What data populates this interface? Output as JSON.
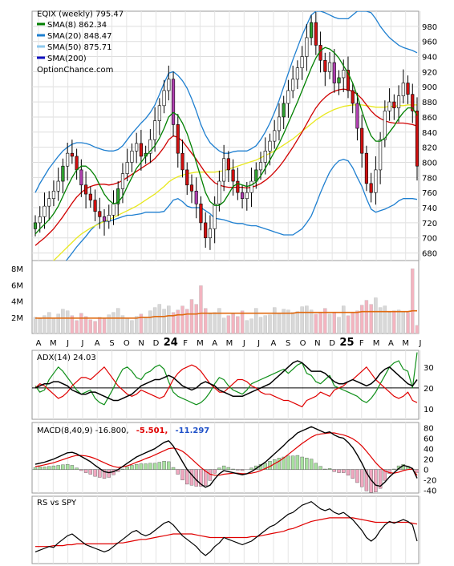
{
  "chart_data": [
    {
      "type": "line",
      "panel": "price",
      "title": "EQIX (weekly) 795.47",
      "source": "OptionChance.com",
      "legend": [
        {
          "label": "SMA(8) 862.34",
          "color": "#008000"
        },
        {
          "label": "SMA(20) 848.47",
          "color": "#1e7fd0"
        },
        {
          "label": "SMA(50) 875.71",
          "color": "#8ec9ee"
        },
        {
          "label": "SMA(200)",
          "color": "#1010c0"
        }
      ],
      "legend_placement": "top-left",
      "ylim": [
        670,
        1000
      ],
      "y_ticks": [
        680,
        700,
        720,
        740,
        760,
        780,
        800,
        820,
        840,
        860,
        880,
        900,
        920,
        940,
        960,
        980
      ],
      "x_ticks": [
        "A",
        "M",
        "J",
        "J",
        "A",
        "S",
        "O",
        "N",
        "D",
        "24",
        "F",
        "M",
        "A",
        "M",
        "J",
        "J",
        "A",
        "S",
        "O",
        "N",
        "D",
        "25",
        "F",
        "M",
        "A",
        "M",
        "J"
      ],
      "close": [
        720,
        728,
        742,
        752,
        762,
        775,
        795,
        812,
        808,
        790,
        770,
        758,
        750,
        735,
        728,
        722,
        730,
        745,
        765,
        785,
        800,
        815,
        825,
        808,
        812,
        830,
        855,
        875,
        895,
        910,
        850,
        812,
        790,
        770,
        762,
        745,
        720,
        700,
        712,
        745,
        775,
        805,
        790,
        775,
        760,
        752,
        760,
        775,
        790,
        800,
        815,
        828,
        842,
        860,
        878,
        895,
        910,
        925,
        940,
        965,
        985,
        955,
        935,
        920,
        932,
        905,
        912,
        922,
        895,
        878,
        845,
        812,
        772,
        760,
        790,
        830,
        868,
        880,
        872,
        888,
        905,
        890,
        868,
        795
      ],
      "sma8": [
        705,
        712,
        718,
        724,
        732,
        742,
        755,
        768,
        780,
        790,
        795,
        795,
        790,
        782,
        770,
        758,
        750,
        745,
        747,
        755,
        768,
        780,
        792,
        800,
        808,
        815,
        822,
        832,
        845,
        860,
        866,
        862,
        852,
        838,
        820,
        800,
        780,
        760,
        748,
        743,
        743,
        748,
        758,
        768,
        772,
        770,
        768,
        770,
        774,
        782,
        792,
        803,
        814,
        825,
        838,
        852,
        866,
        880,
        895,
        910,
        925,
        938,
        948,
        952,
        950,
        945,
        938,
        928,
        918,
        905,
        888,
        868,
        850,
        835,
        828,
        828,
        832,
        840,
        848,
        858,
        866,
        872,
        872,
        862
      ],
      "sma20": [
        690,
        695,
        700,
        706,
        712,
        720,
        728,
        737,
        746,
        754,
        760,
        765,
        768,
        770,
        771,
        771,
        770,
        771,
        773,
        776,
        780,
        784,
        788,
        792,
        796,
        800,
        805,
        812,
        820,
        830,
        835,
        833,
        828,
        820,
        812,
        804,
        795,
        786,
        779,
        773,
        770,
        768,
        767,
        767,
        767,
        767,
        766,
        767,
        769,
        772,
        776,
        781,
        787,
        794,
        802,
        811,
        820,
        830,
        840,
        851,
        862,
        872,
        880,
        886,
        891,
        894,
        896,
        897,
        896,
        894,
        890,
        884,
        876,
        868,
        862,
        858,
        855,
        853,
        852,
        852,
        852,
        851,
        850,
        848
      ],
      "sma50": [
        650,
        655,
        660,
        665,
        670,
        676,
        682,
        688,
        694,
        700,
        705,
        709,
        713,
        716,
        719,
        722,
        724,
        727,
        730,
        733,
        736,
        739,
        742,
        746,
        750,
        754,
        758,
        763,
        768,
        774,
        778,
        781,
        783,
        785,
        786,
        787,
        787,
        787,
        787,
        787,
        788,
        789,
        791,
        793,
        795,
        797,
        799,
        801,
        803,
        806,
        809,
        812,
        815,
        819,
        823,
        827,
        831,
        836,
        841,
        846,
        851,
        856,
        860,
        864,
        867,
        870,
        872,
        874,
        875,
        876,
        876,
        876,
        875,
        874,
        873,
        873,
        873,
        874,
        874,
        875,
        875,
        876,
        876,
        876
      ],
      "bb_upper": [
        760,
        772,
        782,
        792,
        800,
        808,
        815,
        820,
        824,
        826,
        826,
        825,
        823,
        820,
        818,
        816,
        815,
        815,
        817,
        822,
        830,
        838,
        845,
        852,
        858,
        866,
        876,
        890,
        905,
        918,
        920,
        915,
        908,
        898,
        884,
        868,
        850,
        836,
        826,
        820,
        815,
        812,
        812,
        814,
        815,
        815,
        815,
        818,
        822,
        830,
        840,
        852,
        866,
        882,
        900,
        918,
        936,
        952,
        968,
        982,
        995,
        1000,
        1000,
        998,
        995,
        992,
        990,
        990,
        990,
        995,
        1000,
        1000,
        1000,
        998,
        990,
        980,
        972,
        965,
        960,
        955,
        952,
        950,
        948,
        945
      ],
      "bb_lower": [
        620,
        625,
        632,
        640,
        648,
        656,
        664,
        672,
        680,
        688,
        695,
        702,
        710,
        716,
        720,
        722,
        722,
        724,
        726,
        728,
        730,
        730,
        731,
        732,
        734,
        734,
        734,
        734,
        735,
        742,
        750,
        752,
        748,
        742,
        740,
        740,
        740,
        736,
        732,
        726,
        725,
        724,
        722,
        720,
        719,
        719,
        717,
        716,
        716,
        714,
        712,
        710,
        708,
        706,
        704,
        704,
        704,
        708,
        712,
        720,
        729,
        744,
        760,
        774,
        787,
        796,
        802,
        804,
        802,
        793,
        780,
        768,
        752,
        738,
        734,
        736,
        738,
        741,
        744,
        749,
        752,
        752,
        752,
        751
      ]
    },
    {
      "type": "bar",
      "panel": "volume",
      "y_ticks": [
        "2M",
        "4M",
        "6M",
        "8M"
      ],
      "ylim": [
        0,
        9
      ],
      "values": [
        2.0,
        1.8,
        2.2,
        2.6,
        1.9,
        2.4,
        3.0,
        2.8,
        2.2,
        1.6,
        2.5,
        2.1,
        1.7,
        1.5,
        2.0,
        1.8,
        2.3,
        2.6,
        3.1,
        2.2,
        1.9,
        1.6,
        2.1,
        2.4,
        2.0,
        2.8,
        3.2,
        3.6,
        3.0,
        3.4,
        2.6,
        2.9,
        3.4,
        3.0,
        4.2,
        3.6,
        5.9,
        3.1,
        2.4,
        2.6,
        3.1,
        1.9,
        2.2,
        2.4,
        2.1,
        2.8,
        1.6,
        1.8,
        3.1,
        2.0,
        2.2,
        2.3,
        3.2,
        2.5,
        3.0,
        2.9,
        2.6,
        2.7,
        3.3,
        3.4,
        2.9,
        2.4,
        2.6,
        3.1,
        2.4,
        2.6,
        2.0,
        3.4,
        2.2,
        2.6,
        2.8,
        3.5,
        4.1,
        3.6,
        4.4,
        3.2,
        3.4,
        2.6,
        2.8,
        2.9,
        2.7,
        2.6,
        8.0,
        1.0
      ],
      "avg": [
        1.9,
        1.9,
        1.9,
        1.9,
        1.9,
        1.9,
        1.9,
        1.9,
        1.9,
        1.9,
        1.9,
        1.9,
        1.9,
        1.9,
        1.9,
        1.9,
        1.9,
        1.9,
        1.9,
        1.9,
        1.9,
        1.9,
        1.9,
        2.0,
        2.0,
        2.0,
        2.1,
        2.1,
        2.1,
        2.2,
        2.2,
        2.3,
        2.3,
        2.4,
        2.4,
        2.4,
        2.5,
        2.5,
        2.5,
        2.5,
        2.5,
        2.5,
        2.5,
        2.5,
        2.5,
        2.5,
        2.5,
        2.5,
        2.5,
        2.5,
        2.5,
        2.5,
        2.5,
        2.5,
        2.5,
        2.5,
        2.5,
        2.6,
        2.6,
        2.6,
        2.6,
        2.6,
        2.6,
        2.6,
        2.6,
        2.6,
        2.6,
        2.6,
        2.6,
        2.6,
        2.6,
        2.7,
        2.7,
        2.7,
        2.7,
        2.7,
        2.7,
        2.7,
        2.7,
        2.7,
        2.7,
        2.7,
        2.8,
        2.8
      ]
    },
    {
      "type": "line",
      "panel": "adx",
      "title": "ADX(14) 24.03",
      "ylim": [
        5,
        38
      ],
      "y_ticks": [
        10,
        20,
        30
      ],
      "reference_line": 20,
      "adx": [
        20,
        21,
        22,
        22,
        23,
        23,
        22,
        21,
        19,
        18,
        17,
        17,
        18,
        18,
        17,
        16,
        15,
        14,
        14,
        15,
        16,
        17,
        19,
        21,
        22,
        23,
        24,
        24,
        25,
        26,
        25,
        23,
        21,
        20,
        19,
        20,
        22,
        23,
        22,
        21,
        19,
        18,
        17,
        16,
        16,
        16,
        17,
        18,
        19,
        20,
        21,
        22,
        24,
        26,
        28,
        30,
        32,
        33,
        32,
        30,
        28,
        28,
        28,
        27,
        25,
        23,
        22,
        22,
        23,
        24,
        23,
        22,
        21,
        22,
        24,
        27,
        29,
        30,
        28,
        26,
        24,
        22,
        21,
        24
      ],
      "plus_di": [
        21,
        18,
        19,
        24,
        27,
        30,
        28,
        25,
        22,
        19,
        17,
        18,
        19,
        15,
        13,
        12,
        16,
        20,
        25,
        29,
        30,
        28,
        25,
        24,
        27,
        28,
        30,
        31,
        29,
        23,
        18,
        16,
        15,
        14,
        13,
        12,
        13,
        15,
        18,
        22,
        25,
        24,
        21,
        19,
        18,
        17,
        19,
        22,
        23,
        24,
        25,
        26,
        27,
        28,
        29,
        27,
        29,
        31,
        32,
        27,
        26,
        23,
        22,
        24,
        26,
        21,
        20,
        19,
        18,
        17,
        16,
        14,
        13,
        15,
        18,
        22,
        26,
        30,
        32,
        33,
        29,
        28,
        20,
        37
      ],
      "minus_di": [
        20,
        22,
        21,
        19,
        17,
        15,
        16,
        18,
        21,
        23,
        25,
        25,
        24,
        26,
        28,
        30,
        27,
        24,
        21,
        19,
        17,
        16,
        17,
        19,
        18,
        17,
        16,
        15,
        16,
        20,
        24,
        27,
        29,
        30,
        31,
        30,
        28,
        25,
        22,
        20,
        18,
        18,
        20,
        22,
        24,
        24,
        23,
        21,
        20,
        18,
        17,
        17,
        16,
        15,
        14,
        14,
        13,
        12,
        11,
        14,
        15,
        16,
        18,
        17,
        16,
        19,
        20,
        21,
        23,
        24,
        26,
        28,
        30,
        27,
        24,
        22,
        20,
        18,
        16,
        15,
        16,
        18,
        14,
        13
      ]
    },
    {
      "type": "line",
      "panel": "macd",
      "title": "MACD(8,40,9) -16.800,",
      "value_labels": [
        {
          "text": "-5.501,",
          "color": "#e00000"
        },
        {
          "text": "-11.297",
          "color": "#1e50c8"
        }
      ],
      "ylim": [
        -45,
        90
      ],
      "y_ticks": [
        -40,
        -20,
        0,
        20,
        40,
        60,
        80
      ],
      "macd": [
        10,
        12,
        14,
        17,
        20,
        24,
        28,
        32,
        33,
        30,
        25,
        20,
        15,
        8,
        2,
        -4,
        -6,
        -4,
        0,
        6,
        12,
        18,
        24,
        28,
        32,
        36,
        40,
        46,
        52,
        55,
        45,
        30,
        15,
        0,
        -10,
        -20,
        -28,
        -34,
        -30,
        -18,
        -8,
        -2,
        -4,
        -6,
        -8,
        -10,
        -8,
        -4,
        2,
        8,
        14,
        22,
        30,
        38,
        46,
        55,
        62,
        70,
        74,
        78,
        82,
        78,
        74,
        70,
        72,
        66,
        62,
        60,
        52,
        42,
        28,
        12,
        -6,
        -20,
        -30,
        -32,
        -24,
        -14,
        -6,
        2,
        8,
        6,
        2,
        -16.8
      ],
      "signal": [
        6,
        7,
        9,
        11,
        13,
        16,
        19,
        22,
        25,
        27,
        27,
        26,
        24,
        21,
        17,
        13,
        9,
        6,
        4,
        5,
        7,
        10,
        14,
        17,
        21,
        24,
        28,
        32,
        36,
        40,
        41,
        39,
        35,
        28,
        20,
        12,
        4,
        -3,
        -9,
        -11,
        -11,
        -9,
        -8,
        -7,
        -7,
        -8,
        -8,
        -7,
        -5,
        -2,
        2,
        6,
        11,
        16,
        22,
        29,
        36,
        43,
        50,
        56,
        62,
        66,
        68,
        69,
        70,
        70,
        68,
        66,
        63,
        59,
        53,
        45,
        35,
        24,
        13,
        4,
        -3,
        -6,
        -7,
        -5,
        -2,
        0,
        1,
        -11.3
      ],
      "histogram": [
        4,
        5,
        5,
        6,
        7,
        8,
        9,
        10,
        8,
        3,
        -2,
        -6,
        -9,
        -13,
        -15,
        -17,
        -15,
        -10,
        -4,
        1,
        5,
        8,
        10,
        11,
        11,
        12,
        12,
        14,
        16,
        15,
        4,
        -9,
        -20,
        -28,
        -30,
        -32,
        -32,
        -31,
        -21,
        -7,
        3,
        7,
        4,
        1,
        -1,
        -2,
        0,
        3,
        7,
        10,
        12,
        16,
        19,
        22,
        24,
        26,
        26,
        27,
        24,
        22,
        20,
        12,
        6,
        1,
        2,
        -4,
        -6,
        -6,
        -11,
        -17,
        -25,
        -33,
        -41,
        -44,
        -43,
        -36,
        -21,
        -8,
        1,
        7,
        10,
        6,
        1,
        -5.5
      ]
    },
    {
      "type": "line",
      "panel": "rs",
      "title": "RS vs SPY",
      "rs": [
        28,
        30,
        32,
        34,
        33,
        38,
        42,
        46,
        48,
        44,
        40,
        36,
        34,
        32,
        30,
        28,
        30,
        34,
        38,
        42,
        46,
        50,
        52,
        48,
        46,
        48,
        52,
        56,
        60,
        62,
        58,
        52,
        46,
        42,
        38,
        34,
        28,
        24,
        28,
        34,
        38,
        44,
        42,
        40,
        38,
        36,
        38,
        40,
        44,
        48,
        52,
        56,
        58,
        62,
        66,
        70,
        72,
        76,
        80,
        82,
        84,
        80,
        76,
        74,
        76,
        72,
        70,
        72,
        68,
        64,
        58,
        52,
        44,
        40,
        44,
        52,
        58,
        62,
        60,
        62,
        64,
        62,
        58,
        40
      ],
      "rs_ma": [
        34,
        34,
        34,
        34,
        35,
        35,
        35,
        36,
        36,
        37,
        37,
        37,
        37,
        37,
        37,
        37,
        37,
        37,
        38,
        38,
        39,
        40,
        41,
        42,
        42,
        43,
        44,
        45,
        46,
        47,
        48,
        48,
        48,
        48,
        48,
        47,
        46,
        45,
        44,
        44,
        44,
        44,
        44,
        44,
        44,
        44,
        44,
        45,
        45,
        46,
        47,
        48,
        49,
        50,
        51,
        53,
        54,
        56,
        58,
        60,
        62,
        63,
        64,
        65,
        66,
        66,
        66,
        66,
        66,
        66,
        65,
        64,
        63,
        62,
        61,
        61,
        61,
        61,
        61,
        61,
        61,
        61,
        60,
        59
      ]
    }
  ]
}
